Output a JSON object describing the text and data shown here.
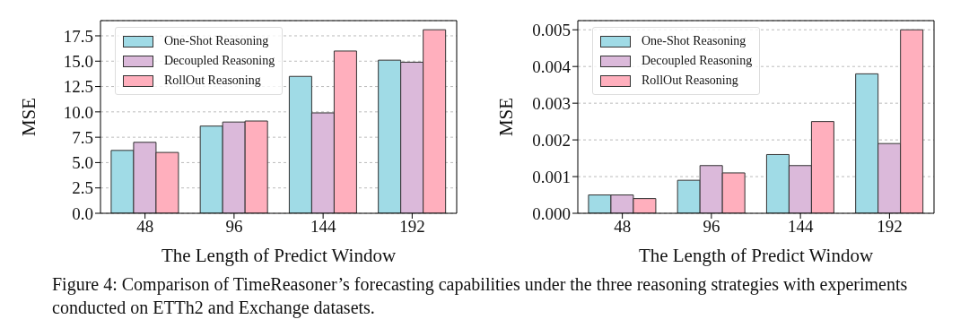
{
  "chart_data": [
    {
      "type": "bar",
      "xlabel": "The Length of Predict Window",
      "ylabel": "MSE",
      "categories": [
        "48",
        "96",
        "144",
        "192"
      ],
      "series": [
        {
          "name": "One-Shot Reasoning",
          "color": "#a0dbe6",
          "values": [
            6.2,
            8.6,
            13.5,
            15.1
          ]
        },
        {
          "name": "Decoupled Reasoning",
          "color": "#dbb9da",
          "values": [
            7.0,
            9.0,
            9.9,
            14.9
          ]
        },
        {
          "name": "RollOut Reasoning",
          "color": "#ffafbd",
          "values": [
            6.0,
            9.1,
            16.0,
            18.1
          ]
        }
      ],
      "ylim": [
        0,
        19
      ],
      "yticks": [
        {
          "value": 0,
          "label": "0.0"
        },
        2.5,
        {
          "value": 5,
          "label": "5.0"
        },
        7.5,
        {
          "value": 10,
          "label": "10.0"
        },
        12.5,
        {
          "value": 15,
          "label": "15.0"
        },
        17.5
      ],
      "grid": "y",
      "legend": "top left",
      "annotations": [
        "Figure 4: Comparison of TimeReasoner’s forecasting capabilities under the three reasoning strategies with experiments conducted on ETTh2 and Exchange datasets."
      ]
    },
    {
      "type": "bar",
      "xlabel": "The Length of Predict Window",
      "ylabel": "MSE",
      "categories": [
        "48",
        "96",
        "144",
        "192"
      ],
      "series": [
        {
          "name": "One-Shot Reasoning",
          "color": "#a0dbe6",
          "values": [
            0.0005,
            0.0009,
            0.0016,
            0.0038
          ]
        },
        {
          "name": "Decoupled Reasoning",
          "color": "#dbb9da",
          "values": [
            0.0005,
            0.0013,
            0.0013,
            0.0019
          ]
        },
        {
          "name": "RollOut Reasoning",
          "color": "#ffafbd",
          "values": [
            0.0004,
            0.0011,
            0.0025,
            0.005
          ]
        }
      ],
      "ylim": [
        0,
        0.00525
      ],
      "yticks": [
        {
          "value": 0,
          "label": "0.000"
        },
        0.001,
        0.002,
        0.003,
        0.004,
        0.005
      ],
      "grid": "y",
      "legend": "top left"
    }
  ]
}
